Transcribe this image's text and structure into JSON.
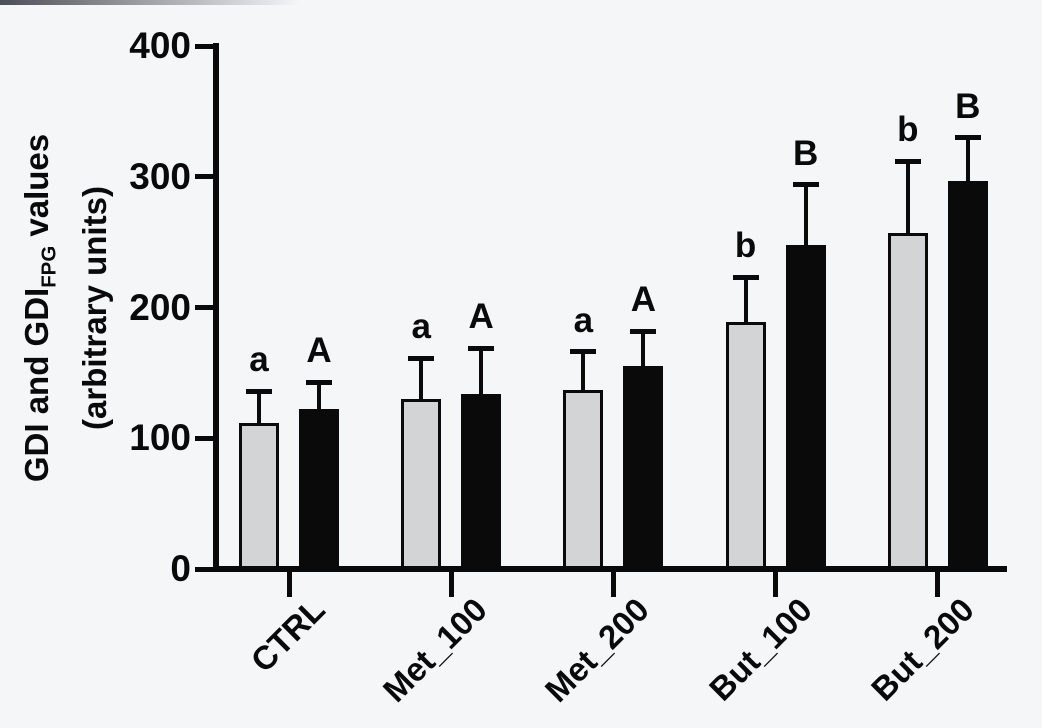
{
  "figure": {
    "background": "#f5f6f8",
    "axis_color": "#0a0a0a"
  },
  "chart_data": {
    "type": "bar",
    "title": "",
    "xlabel": "",
    "ylabel": "GDI and GDI_FPG values (arbitrary units)",
    "ylabel_parts": {
      "pre": "GDI and GDI",
      "sub": "FPG",
      "post": " values",
      "line2": "(arbitrary units)"
    },
    "categories": [
      "CTRL",
      "Met_100",
      "Met_200",
      "But_100",
      "But_200"
    ],
    "series": [
      {
        "name": "GDI",
        "bar_color": "#d3d4d6",
        "values": [
          112,
          130,
          137,
          189,
          257
        ],
        "error_up": [
          24,
          31,
          29,
          34,
          55
        ],
        "sig_letters": [
          "a",
          "a",
          "a",
          "b",
          "b"
        ]
      },
      {
        "name": "GDI_FPG",
        "bar_color": "#0a0a0a",
        "values": [
          122,
          134,
          155,
          248,
          297
        ],
        "error_up": [
          21,
          35,
          27,
          46,
          33
        ],
        "sig_letters": [
          "A",
          "A",
          "A",
          "B",
          "B"
        ]
      }
    ],
    "y_ticks": [
      0,
      100,
      200,
      300,
      400
    ],
    "ylim": [
      0,
      400
    ],
    "grid": false,
    "legend_position": "none",
    "error_bars": "upper-only",
    "bar_outline": "#0a0a0a"
  }
}
